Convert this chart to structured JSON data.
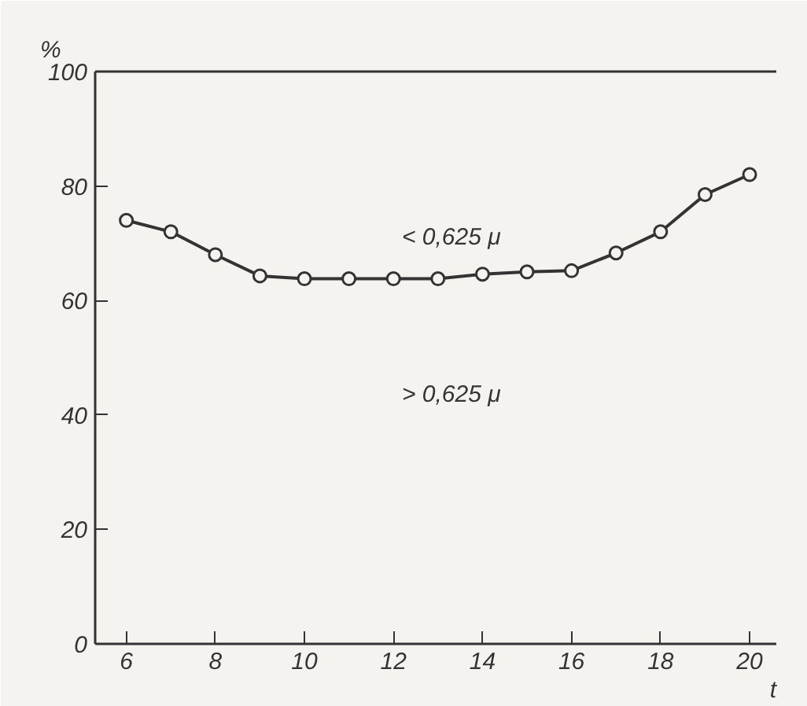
{
  "chart_data": {
    "type": "line",
    "xlabel": "t",
    "ylabel": "%",
    "x": [
      6,
      7,
      8,
      9,
      10,
      11,
      12,
      13,
      14,
      15,
      16,
      17,
      18,
      19,
      20
    ],
    "series": [
      {
        "color": "#333333",
        "values": [
          74,
          72,
          68,
          64.3,
          63.8,
          63.8,
          63.8,
          63.8,
          64.6,
          65,
          65.2,
          68.3,
          72,
          78.5,
          82
        ]
      }
    ],
    "xlim": [
      5.3,
      20.6
    ],
    "ylim": [
      0,
      100
    ],
    "xticks": [
      6,
      8,
      10,
      12,
      14,
      16,
      18,
      20
    ],
    "yticks": [
      0,
      20,
      40,
      60,
      80,
      100
    ],
    "marker": "circle",
    "line_style": "solid",
    "grid": false,
    "annotations": [
      "< 0,625 μ",
      "> 0,625 μ"
    ]
  }
}
